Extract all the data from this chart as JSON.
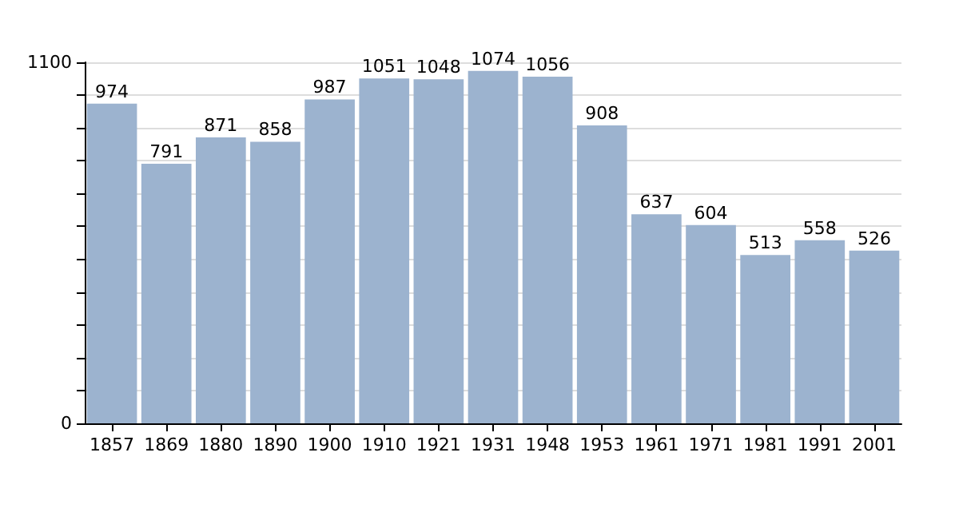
{
  "chart_data": {
    "type": "bar",
    "categories": [
      "1857",
      "1869",
      "1880",
      "1890",
      "1900",
      "1910",
      "1921",
      "1931",
      "1948",
      "1953",
      "1961",
      "1971",
      "1981",
      "1991",
      "2001"
    ],
    "values": [
      974,
      791,
      871,
      858,
      987,
      1051,
      1048,
      1074,
      1056,
      908,
      637,
      604,
      513,
      558,
      526
    ],
    "color": "#9cb3cf",
    "ylim": [
      0,
      1100
    ],
    "yticks": [
      0,
      {
        "value": 100,
        "label": null
      },
      {
        "value": 200,
        "label": null
      },
      {
        "value": 300,
        "label": null
      },
      {
        "value": 400,
        "label": null
      },
      {
        "value": 500,
        "label": null
      },
      {
        "value": 600,
        "label": null
      },
      {
        "value": 700,
        "label": null
      },
      {
        "value": 800,
        "label": null
      },
      {
        "value": 900,
        "label": null
      },
      {
        "value": 1000,
        "label": null
      },
      1100
    ],
    "grid": "y",
    "data_labels": true
  }
}
